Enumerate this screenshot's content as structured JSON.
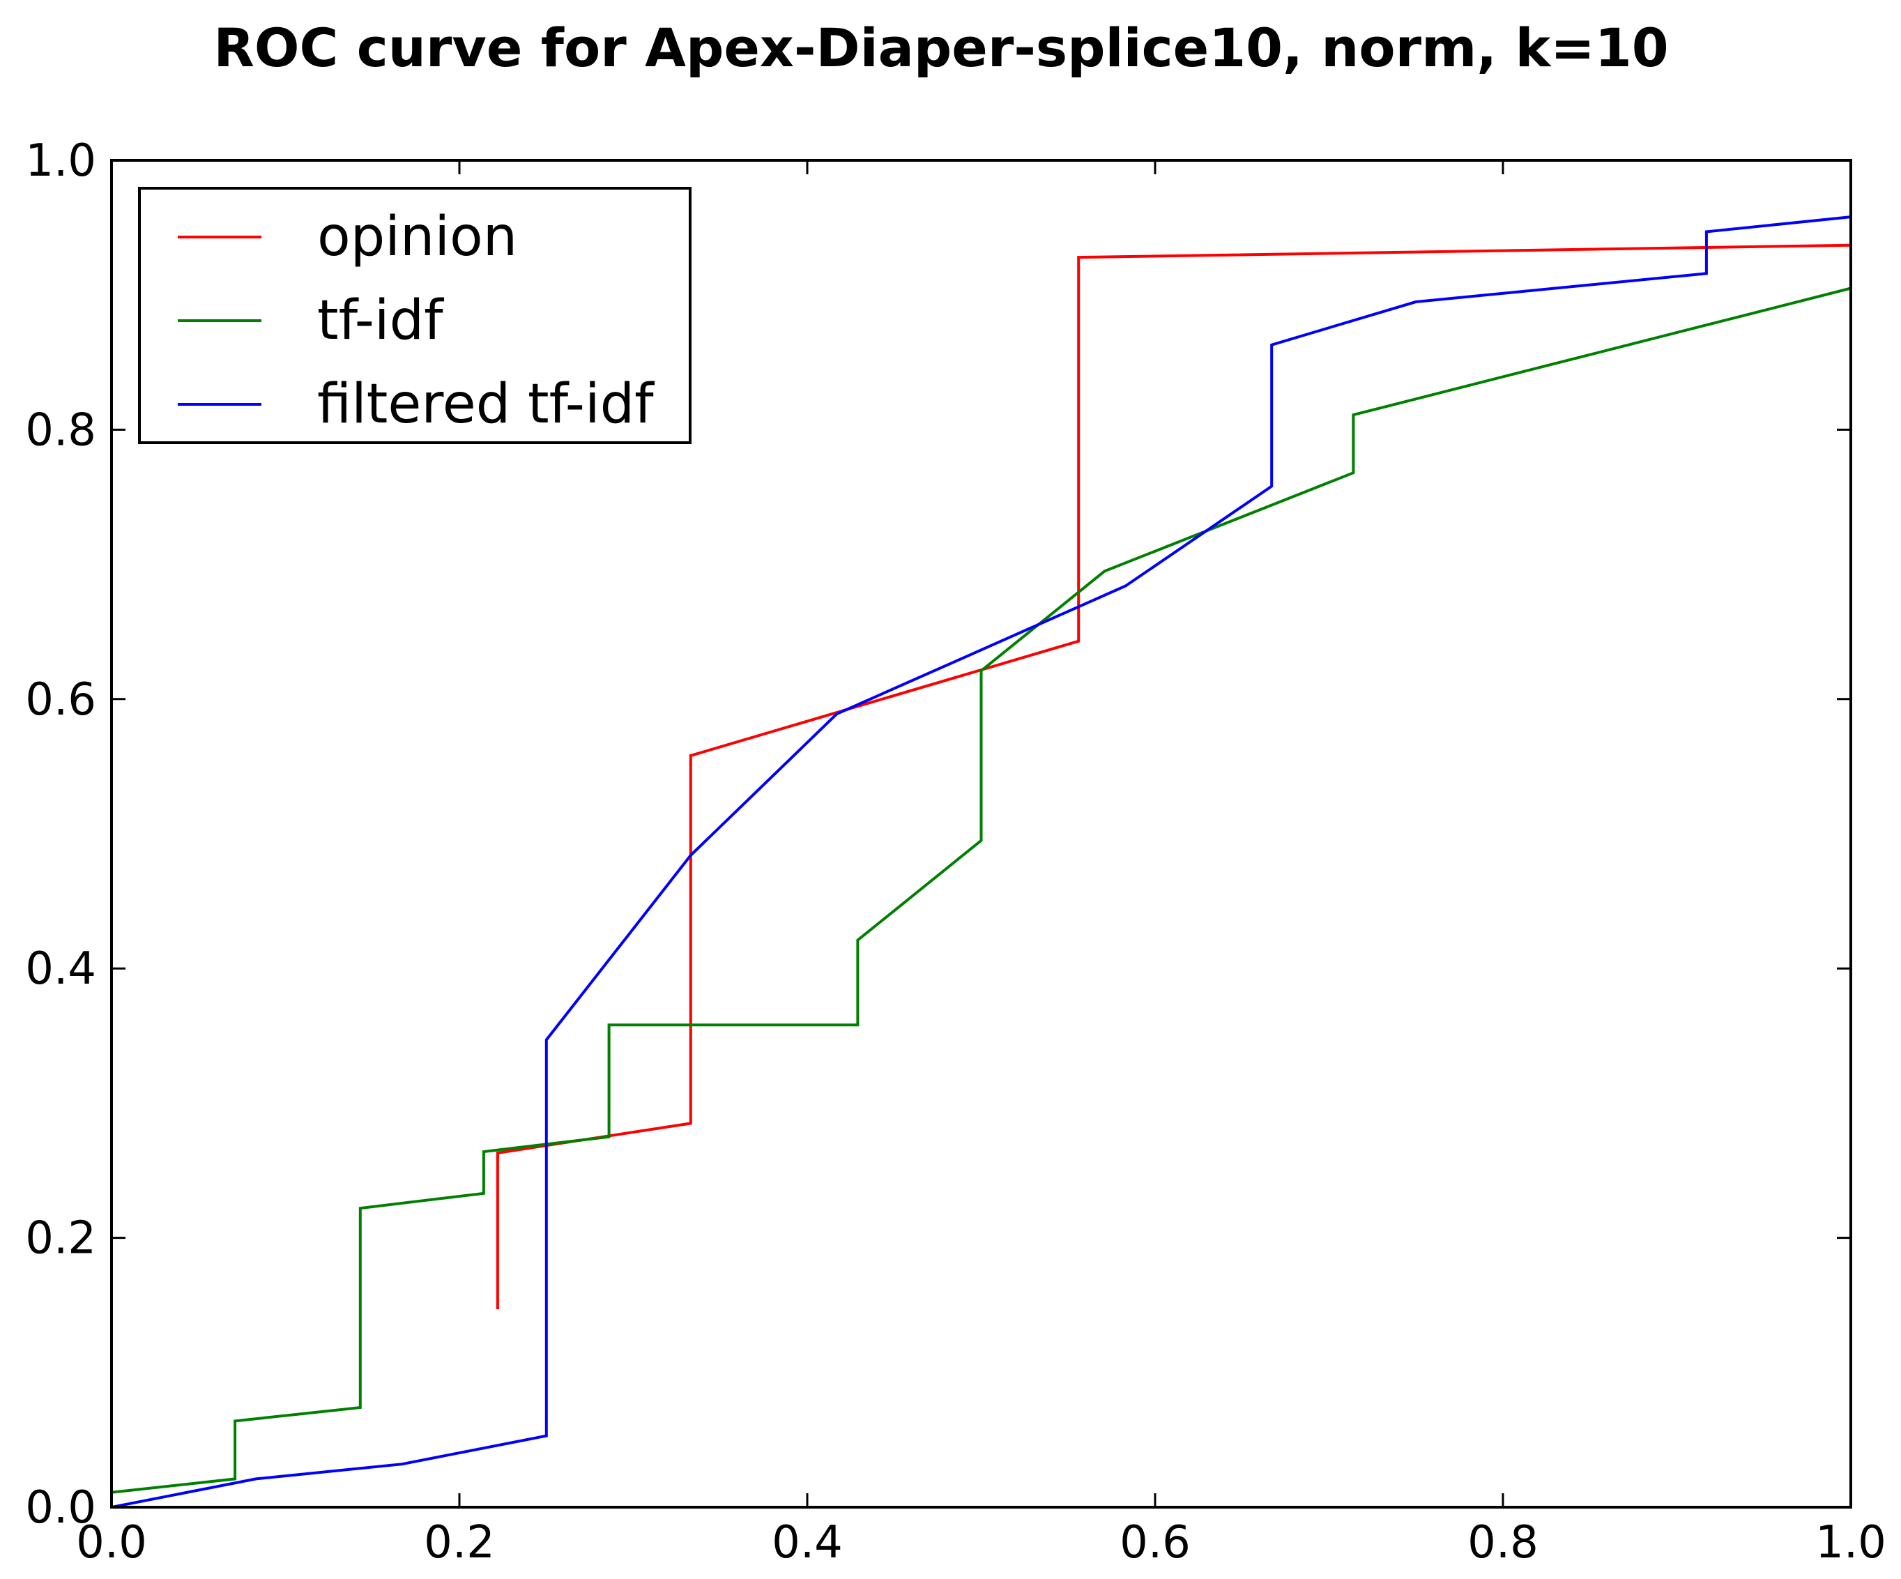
{
  "chart_data": {
    "type": "line",
    "title": "ROC curve for Apex-Diaper-splice10, norm, k=10",
    "xlabel": "",
    "ylabel": "",
    "xlim": [
      0.0,
      1.0
    ],
    "ylim": [
      0.0,
      1.0
    ],
    "xticks": [
      "0.0",
      "0.2",
      "0.4",
      "0.6",
      "0.8",
      "1.0"
    ],
    "yticks": [
      "0.0",
      "0.2",
      "0.4",
      "0.6",
      "0.8",
      "1.0"
    ],
    "grid": false,
    "legend_position": "top-left",
    "series": [
      {
        "name": "opinion",
        "color": "#ff0000",
        "x": [
          0.222,
          0.222,
          0.333,
          0.333,
          0.556,
          0.556,
          1.0
        ],
        "y": [
          0.147,
          0.263,
          0.285,
          0.558,
          0.643,
          0.928,
          0.937
        ]
      },
      {
        "name": "tf-idf",
        "color": "#008000",
        "x": [
          0.0,
          0.071,
          0.071,
          0.143,
          0.143,
          0.214,
          0.214,
          0.286,
          0.286,
          0.429,
          0.429,
          0.5,
          0.5,
          0.571,
          0.714,
          0.714,
          1.0
        ],
        "y": [
          0.011,
          0.021,
          0.064,
          0.074,
          0.222,
          0.233,
          0.264,
          0.275,
          0.358,
          0.358,
          0.421,
          0.495,
          0.621,
          0.695,
          0.768,
          0.811,
          0.905
        ]
      },
      {
        "name": "filtered tf-idf",
        "color": "#0000ff",
        "x": [
          0.0,
          0.083,
          0.167,
          0.25,
          0.25,
          0.333,
          0.417,
          0.583,
          0.667,
          0.667,
          0.75,
          0.917,
          0.917,
          1.0
        ],
        "y": [
          0.0,
          0.021,
          0.032,
          0.053,
          0.347,
          0.484,
          0.589,
          0.684,
          0.758,
          0.863,
          0.895,
          0.916,
          0.947,
          0.958
        ]
      }
    ]
  }
}
